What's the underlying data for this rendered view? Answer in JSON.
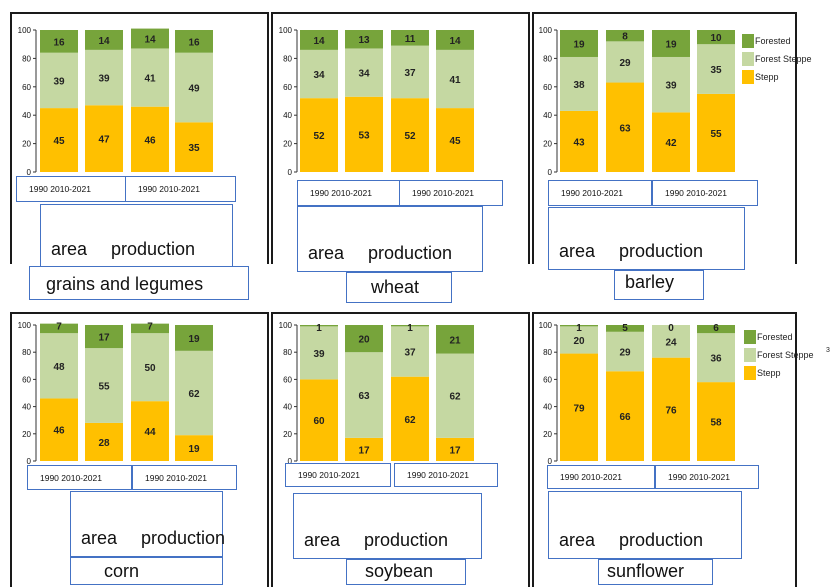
{
  "legend": {
    "labels": [
      "Forested",
      "Forest Steppe",
      "Stepp"
    ],
    "colors": [
      "#77a43b",
      "#c5d8a2",
      "#ffc000"
    ],
    "extra_mark": "3"
  },
  "chart_data": [
    {
      "type": "bar",
      "stacked": true,
      "crop": "grains and legumes",
      "groups": [
        "area",
        "production"
      ],
      "periods": [
        "1990",
        "2010-2021"
      ],
      "period_label": "1990 2010-2021",
      "yticks": [
        "0",
        "20",
        "40",
        "60",
        "80",
        "100"
      ],
      "ylim": [
        0,
        100
      ],
      "series": [
        {
          "name": "Stepp",
          "values": [
            45,
            47,
            46,
            35
          ]
        },
        {
          "name": "Forest Steppe",
          "values": [
            39,
            39,
            41,
            49
          ]
        },
        {
          "name": "Forested",
          "values": [
            16,
            14,
            14,
            16
          ]
        }
      ]
    },
    {
      "type": "bar",
      "stacked": true,
      "crop": "wheat",
      "groups": [
        "area",
        "production"
      ],
      "periods": [
        "1990",
        "2010-2021"
      ],
      "period_label": "1990 2010-2021",
      "yticks": [
        "0",
        "20",
        "40",
        "60",
        "80",
        "100"
      ],
      "ylim": [
        0,
        100
      ],
      "series": [
        {
          "name": "Stepp",
          "values": [
            52,
            53,
            52,
            45
          ]
        },
        {
          "name": "Forest Steppe",
          "values": [
            34,
            34,
            37,
            41
          ]
        },
        {
          "name": "Forested",
          "values": [
            14,
            13,
            11,
            14
          ]
        }
      ]
    },
    {
      "type": "bar",
      "stacked": true,
      "crop": "barley",
      "groups": [
        "area",
        "production"
      ],
      "periods": [
        "1990",
        "2010-2021"
      ],
      "period_label": "1990 2010-2021",
      "yticks": [
        "0",
        "20",
        "40",
        "60",
        "80",
        "100"
      ],
      "ylim": [
        0,
        100
      ],
      "series": [
        {
          "name": "Stepp",
          "values": [
            43,
            63,
            42,
            55
          ]
        },
        {
          "name": "Forest Steppe",
          "values": [
            38,
            29,
            39,
            35
          ]
        },
        {
          "name": "Forested",
          "values": [
            19,
            8,
            19,
            10
          ]
        }
      ]
    },
    {
      "type": "bar",
      "stacked": true,
      "crop": "corn",
      "groups": [
        "area",
        "production"
      ],
      "periods": [
        "1990",
        "2010-2021"
      ],
      "period_label": "1990 2010-2021",
      "yticks": [
        "0",
        "20",
        "40",
        "60",
        "80",
        "100"
      ],
      "ylim": [
        0,
        100
      ],
      "series": [
        {
          "name": "Stepp",
          "values": [
            46,
            28,
            44,
            19
          ]
        },
        {
          "name": "Forest Steppe",
          "values": [
            48,
            55,
            50,
            62
          ]
        },
        {
          "name": "Forested",
          "values": [
            7,
            17,
            7,
            19
          ]
        }
      ]
    },
    {
      "type": "bar",
      "stacked": true,
      "crop": "soybean",
      "groups": [
        "area",
        "production"
      ],
      "periods": [
        "1990",
        "2010-2021"
      ],
      "period_label": "1990 2010-2021",
      "yticks": [
        "0",
        "20",
        "40",
        "60",
        "80",
        "100"
      ],
      "ylim": [
        0,
        100
      ],
      "series": [
        {
          "name": "Stepp",
          "values": [
            60,
            17,
            62,
            17
          ]
        },
        {
          "name": "Forest Steppe",
          "values": [
            39,
            63,
            37,
            62
          ]
        },
        {
          "name": "Forested",
          "values": [
            1,
            20,
            1,
            21
          ]
        }
      ]
    },
    {
      "type": "bar",
      "stacked": true,
      "crop": "sunflower",
      "groups": [
        "area",
        "production"
      ],
      "periods": [
        "1990",
        "2010-2021"
      ],
      "period_label": "1990 2010-2021",
      "yticks": [
        "0",
        "20",
        "40",
        "60",
        "80",
        "100"
      ],
      "ylim": [
        0,
        100
      ],
      "series": [
        {
          "name": "Stepp",
          "values": [
            79,
            66,
            76,
            58
          ]
        },
        {
          "name": "Forest Steppe",
          "values": [
            20,
            29,
            24,
            36
          ]
        },
        {
          "name": "Forested",
          "values": [
            1,
            5,
            0,
            6
          ]
        }
      ]
    }
  ]
}
